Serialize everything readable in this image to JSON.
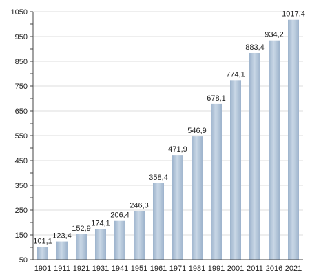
{
  "chart_data": {
    "type": "bar",
    "title": "",
    "xlabel": "",
    "ylabel": "",
    "categories": [
      "1901",
      "1911",
      "1921",
      "1931",
      "1941",
      "1951",
      "1961",
      "1971",
      "1981",
      "1991",
      "2001",
      "2011",
      "2016",
      "2021"
    ],
    "values": [
      101.1,
      123.4,
      152.9,
      174.1,
      206.4,
      246.3,
      358.4,
      471.9,
      546.9,
      678.1,
      774.1,
      883.4,
      934.2,
      1017.4
    ],
    "value_labels": [
      "101,1",
      "123,4",
      "152,9",
      "174,1",
      "206,4",
      "246,3",
      "358,4",
      "471,9",
      "546,9",
      "678,1",
      "774,1",
      "883,4",
      "934,2",
      "1017,4"
    ],
    "ylim": [
      50,
      1050
    ],
    "yticks": [
      "50",
      "150",
      "250",
      "350",
      "450",
      "550",
      "650",
      "750",
      "850",
      "950",
      "1050"
    ],
    "grid": true,
    "legend": "none",
    "bar_color": "#9db3cc",
    "bar_highlight_color": "#c9d7e6",
    "grid_color": "#dcdcdc",
    "axis_color": "#444444",
    "text_color": "#222222"
  }
}
